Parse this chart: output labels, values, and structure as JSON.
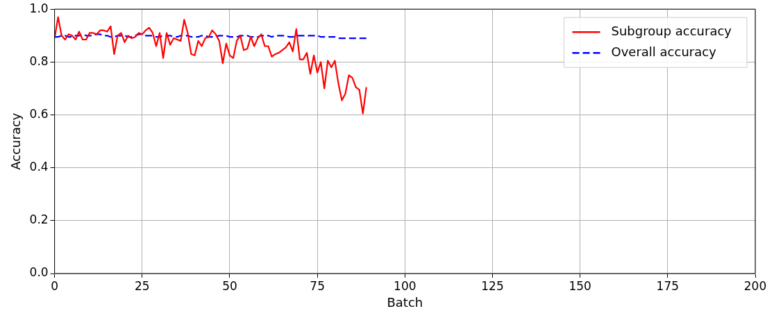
{
  "chart_data": {
    "type": "line",
    "xlabel": "Batch",
    "ylabel": "Accuracy",
    "x": [
      0,
      1,
      2,
      3,
      4,
      5,
      6,
      7,
      8,
      9,
      10,
      11,
      12,
      13,
      14,
      15,
      16,
      17,
      18,
      19,
      20,
      21,
      22,
      23,
      24,
      25,
      26,
      27,
      28,
      29,
      30,
      31,
      32,
      33,
      34,
      35,
      36,
      37,
      38,
      39,
      40,
      41,
      42,
      43,
      44,
      45,
      46,
      47,
      48,
      49,
      50,
      51,
      52,
      53,
      54,
      55,
      56,
      57,
      58,
      59,
      60,
      61,
      62,
      63,
      64,
      65,
      66,
      67,
      68,
      69,
      70,
      71,
      72,
      73,
      74,
      75,
      76,
      77,
      78,
      79,
      80,
      81,
      82,
      83,
      84,
      85,
      86,
      87,
      88,
      89
    ],
    "series": [
      {
        "name": "Subgroup accuracy",
        "color": "#ff0000",
        "line_style": "solid",
        "values": [
          0.89,
          0.97,
          0.9,
          0.885,
          0.905,
          0.9,
          0.885,
          0.915,
          0.885,
          0.885,
          0.91,
          0.91,
          0.905,
          0.92,
          0.92,
          0.915,
          0.935,
          0.83,
          0.9,
          0.91,
          0.875,
          0.9,
          0.89,
          0.895,
          0.91,
          0.905,
          0.92,
          0.93,
          0.91,
          0.86,
          0.91,
          0.815,
          0.91,
          0.865,
          0.89,
          0.885,
          0.88,
          0.96,
          0.91,
          0.83,
          0.825,
          0.88,
          0.86,
          0.89,
          0.895,
          0.92,
          0.905,
          0.88,
          0.795,
          0.87,
          0.825,
          0.815,
          0.88,
          0.9,
          0.845,
          0.85,
          0.895,
          0.86,
          0.89,
          0.905,
          0.86,
          0.86,
          0.82,
          0.83,
          0.835,
          0.845,
          0.855,
          0.875,
          0.84,
          0.925,
          0.81,
          0.81,
          0.835,
          0.755,
          0.825,
          0.76,
          0.8,
          0.7,
          0.805,
          0.78,
          0.805,
          0.72,
          0.655,
          0.68,
          0.75,
          0.74,
          0.705,
          0.695,
          0.605,
          0.705
        ]
      },
      {
        "name": "Overall accuracy",
        "color": "#0000ff",
        "line_style": "dashed",
        "values": [
          0.895,
          0.895,
          0.9,
          0.9,
          0.895,
          0.895,
          0.9,
          0.9,
          0.905,
          0.9,
          0.9,
          0.9,
          0.905,
          0.905,
          0.9,
          0.9,
          0.895,
          0.895,
          0.9,
          0.9,
          0.9,
          0.895,
          0.895,
          0.9,
          0.905,
          0.905,
          0.9,
          0.9,
          0.9,
          0.895,
          0.895,
          0.9,
          0.9,
          0.9,
          0.895,
          0.895,
          0.9,
          0.9,
          0.9,
          0.895,
          0.895,
          0.895,
          0.9,
          0.9,
          0.895,
          0.895,
          0.895,
          0.9,
          0.9,
          0.9,
          0.895,
          0.895,
          0.895,
          0.9,
          0.9,
          0.9,
          0.895,
          0.895,
          0.895,
          0.9,
          0.9,
          0.9,
          0.895,
          0.9,
          0.9,
          0.9,
          0.9,
          0.895,
          0.895,
          0.9,
          0.9,
          0.9,
          0.9,
          0.9,
          0.9,
          0.9,
          0.895,
          0.895,
          0.895,
          0.895,
          0.895,
          0.89,
          0.89,
          0.89,
          0.89,
          0.89,
          0.89,
          0.89,
          0.89,
          0.89
        ]
      }
    ],
    "xlim": [
      0,
      200
    ],
    "xticks": [
      0,
      25,
      50,
      75,
      100,
      125,
      150,
      175,
      200
    ],
    "ylim": [
      0,
      1
    ],
    "yticks": [
      {
        "value": 0,
        "label": "0.0"
      },
      {
        "value": 0.2,
        "label": "0.2"
      },
      {
        "value": 0.4,
        "label": "0.4"
      },
      {
        "value": 0.6,
        "label": "0.6"
      },
      {
        "value": 0.8,
        "label": "0.8"
      },
      {
        "value": 1,
        "label": "1.0"
      }
    ],
    "grid": true,
    "legend": "top right",
    "marker": "none"
  }
}
